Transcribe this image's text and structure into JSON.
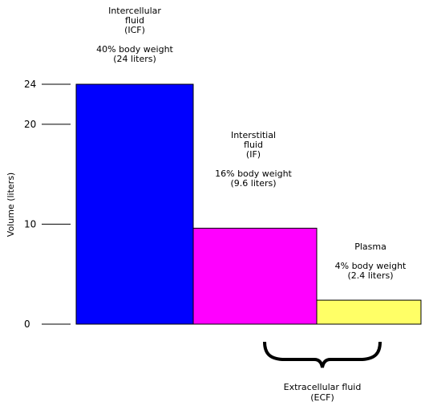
{
  "chart_data": {
    "type": "bar",
    "categories": [
      "ICF",
      "IF",
      "Plasma"
    ],
    "values": [
      24,
      9.6,
      2.4
    ],
    "colors": [
      "#0000ff",
      "#ff00ff",
      "#ffff66"
    ],
    "ylabel": "Volume (liters)",
    "ylim": [
      0,
      24
    ],
    "yticks": [
      {
        "value": 0,
        "label": "0"
      },
      {
        "value": 10,
        "label": "10"
      },
      {
        "value": 20,
        "label": "20"
      },
      {
        "value": 24,
        "label": "24"
      }
    ],
    "bar_labels": [
      {
        "name": "Intercellular",
        "name2": "fluid",
        "abbr": "(ICF)",
        "percent": "40% body weight",
        "liters": "(24 liters)"
      },
      {
        "name": "Interstitial",
        "name2": "fluid",
        "abbr": "(IF)",
        "percent": "16% body weight",
        "liters": "(9.6 liters)"
      },
      {
        "name": "Plasma",
        "name2": "",
        "abbr": "",
        "percent": "4% body weight",
        "liters": "(2.4 liters)"
      }
    ],
    "bracket_label": {
      "line1": "Extracellular fluid",
      "line2": "(ECF)"
    }
  }
}
